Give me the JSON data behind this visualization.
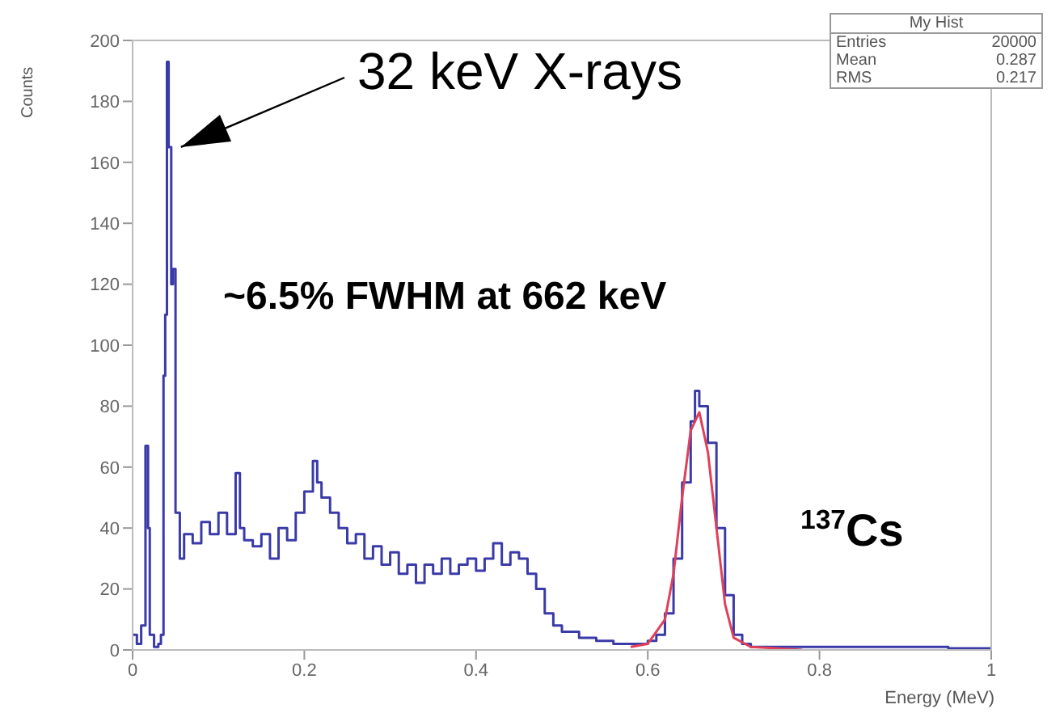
{
  "chart_data": {
    "type": "step",
    "title": "My Hist",
    "xlabel": "Energy (MeV)",
    "ylabel": "Counts",
    "xlim": [
      0,
      1
    ],
    "xticks": [
      0,
      0.2,
      0.4,
      0.6,
      0.8,
      1
    ],
    "ylim": [
      0,
      200
    ],
    "yticks": [
      0,
      20,
      40,
      60,
      80,
      100,
      120,
      140,
      160,
      180,
      200
    ],
    "grid": false,
    "legend": false,
    "marker": "none",
    "line_style": "solid",
    "series": [
      {
        "color": "#3a3aa8",
        "x": [
          0,
          0.005,
          0.01,
          0.015,
          0.018,
          0.02,
          0.025,
          0.03,
          0.033,
          0.036,
          0.038,
          0.04,
          0.042,
          0.045,
          0.047,
          0.05,
          0.055,
          0.06,
          0.07,
          0.08,
          0.09,
          0.1,
          0.11,
          0.12,
          0.125,
          0.13,
          0.14,
          0.15,
          0.16,
          0.17,
          0.18,
          0.19,
          0.2,
          0.21,
          0.215,
          0.22,
          0.23,
          0.24,
          0.25,
          0.26,
          0.27,
          0.28,
          0.29,
          0.3,
          0.31,
          0.32,
          0.33,
          0.34,
          0.35,
          0.36,
          0.37,
          0.38,
          0.39,
          0.4,
          0.41,
          0.42,
          0.43,
          0.44,
          0.45,
          0.46,
          0.47,
          0.48,
          0.49,
          0.5,
          0.52,
          0.54,
          0.56,
          0.58,
          0.6,
          0.61,
          0.62,
          0.63,
          0.64,
          0.65,
          0.655,
          0.66,
          0.67,
          0.68,
          0.69,
          0.7,
          0.71,
          0.72,
          0.75,
          0.8,
          0.85,
          0.9,
          0.95,
          1
        ],
        "values": [
          5,
          2,
          8,
          67,
          40,
          5,
          1,
          2,
          5,
          90,
          110,
          193,
          165,
          120,
          125,
          45,
          30,
          38,
          35,
          42,
          38,
          45,
          38,
          58,
          40,
          36,
          34,
          38,
          30,
          40,
          36,
          45,
          52,
          62,
          55,
          50,
          45,
          40,
          35,
          38,
          30,
          34,
          28,
          32,
          25,
          28,
          22,
          28,
          25,
          30,
          25,
          28,
          30,
          26,
          30,
          35,
          28,
          32,
          30,
          25,
          20,
          12,
          8,
          6,
          4,
          3,
          2,
          2,
          3,
          5,
          12,
          30,
          55,
          75,
          85,
          80,
          68,
          40,
          18,
          5,
          2,
          1,
          1,
          1,
          1,
          1,
          0.5,
          0
        ]
      },
      {
        "type": "line",
        "color": "#e0405a",
        "x": [
          0.58,
          0.6,
          0.62,
          0.63,
          0.64,
          0.65,
          0.66,
          0.67,
          0.68,
          0.69,
          0.7,
          0.72,
          0.75,
          0.78
        ],
        "values": [
          1,
          2,
          10,
          25,
          50,
          72,
          78,
          65,
          40,
          15,
          4,
          1,
          0.5,
          0
        ]
      }
    ],
    "annotations": [
      {
        "text": "32 keV X-rays",
        "x": 0.045,
        "y": 165
      },
      "~6.5% FWHM at 662 keV",
      "$^{137}$Cs",
      "Entries 20000",
      "Mean 0.287",
      "RMS 0.217"
    ]
  }
}
